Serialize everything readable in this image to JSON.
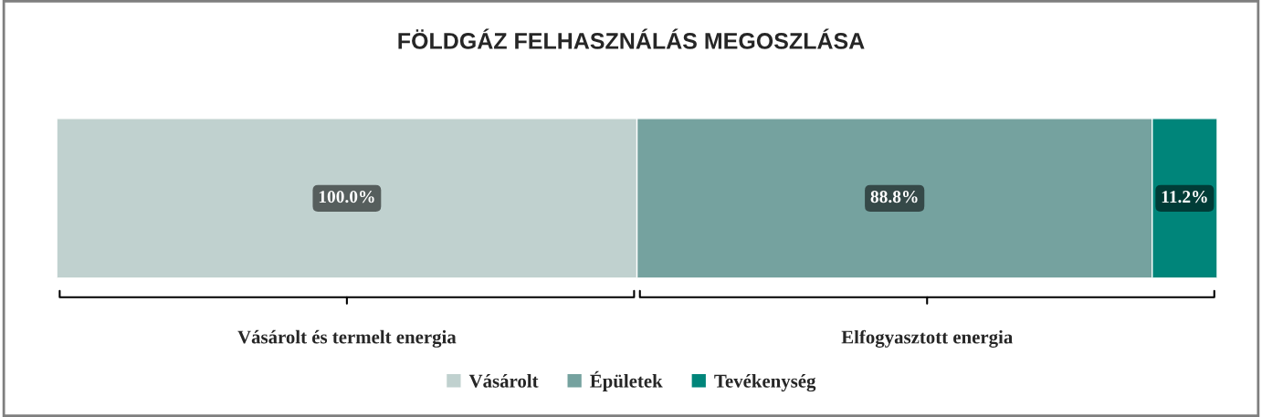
{
  "chart_data": {
    "type": "bar",
    "title": "FÖLDGÁZ FELHASZNÁLÁS MEGOSZLÁSA",
    "orientation": "horizontal",
    "stacked": true,
    "categories": [
      null
    ],
    "xlim": [
      0,
      200
    ],
    "tick_labels": false,
    "series": [
      {
        "name": "Vásárolt",
        "color": "#c0d1cf",
        "values": [
          100.0
        ],
        "value_labels": [
          "100.0%"
        ]
      },
      {
        "name": "Épületek",
        "color": "#75a29f",
        "values": [
          88.8
        ],
        "value_labels": [
          "88.8%"
        ]
      },
      {
        "name": "Tevékenység",
        "color": "#00857a",
        "values": [
          11.2
        ],
        "value_labels": [
          "11.2%"
        ]
      }
    ],
    "annotations": [
      "Vásárolt és termelt energia",
      "Elfogyasztott energia"
    ],
    "legend": "bottom"
  }
}
